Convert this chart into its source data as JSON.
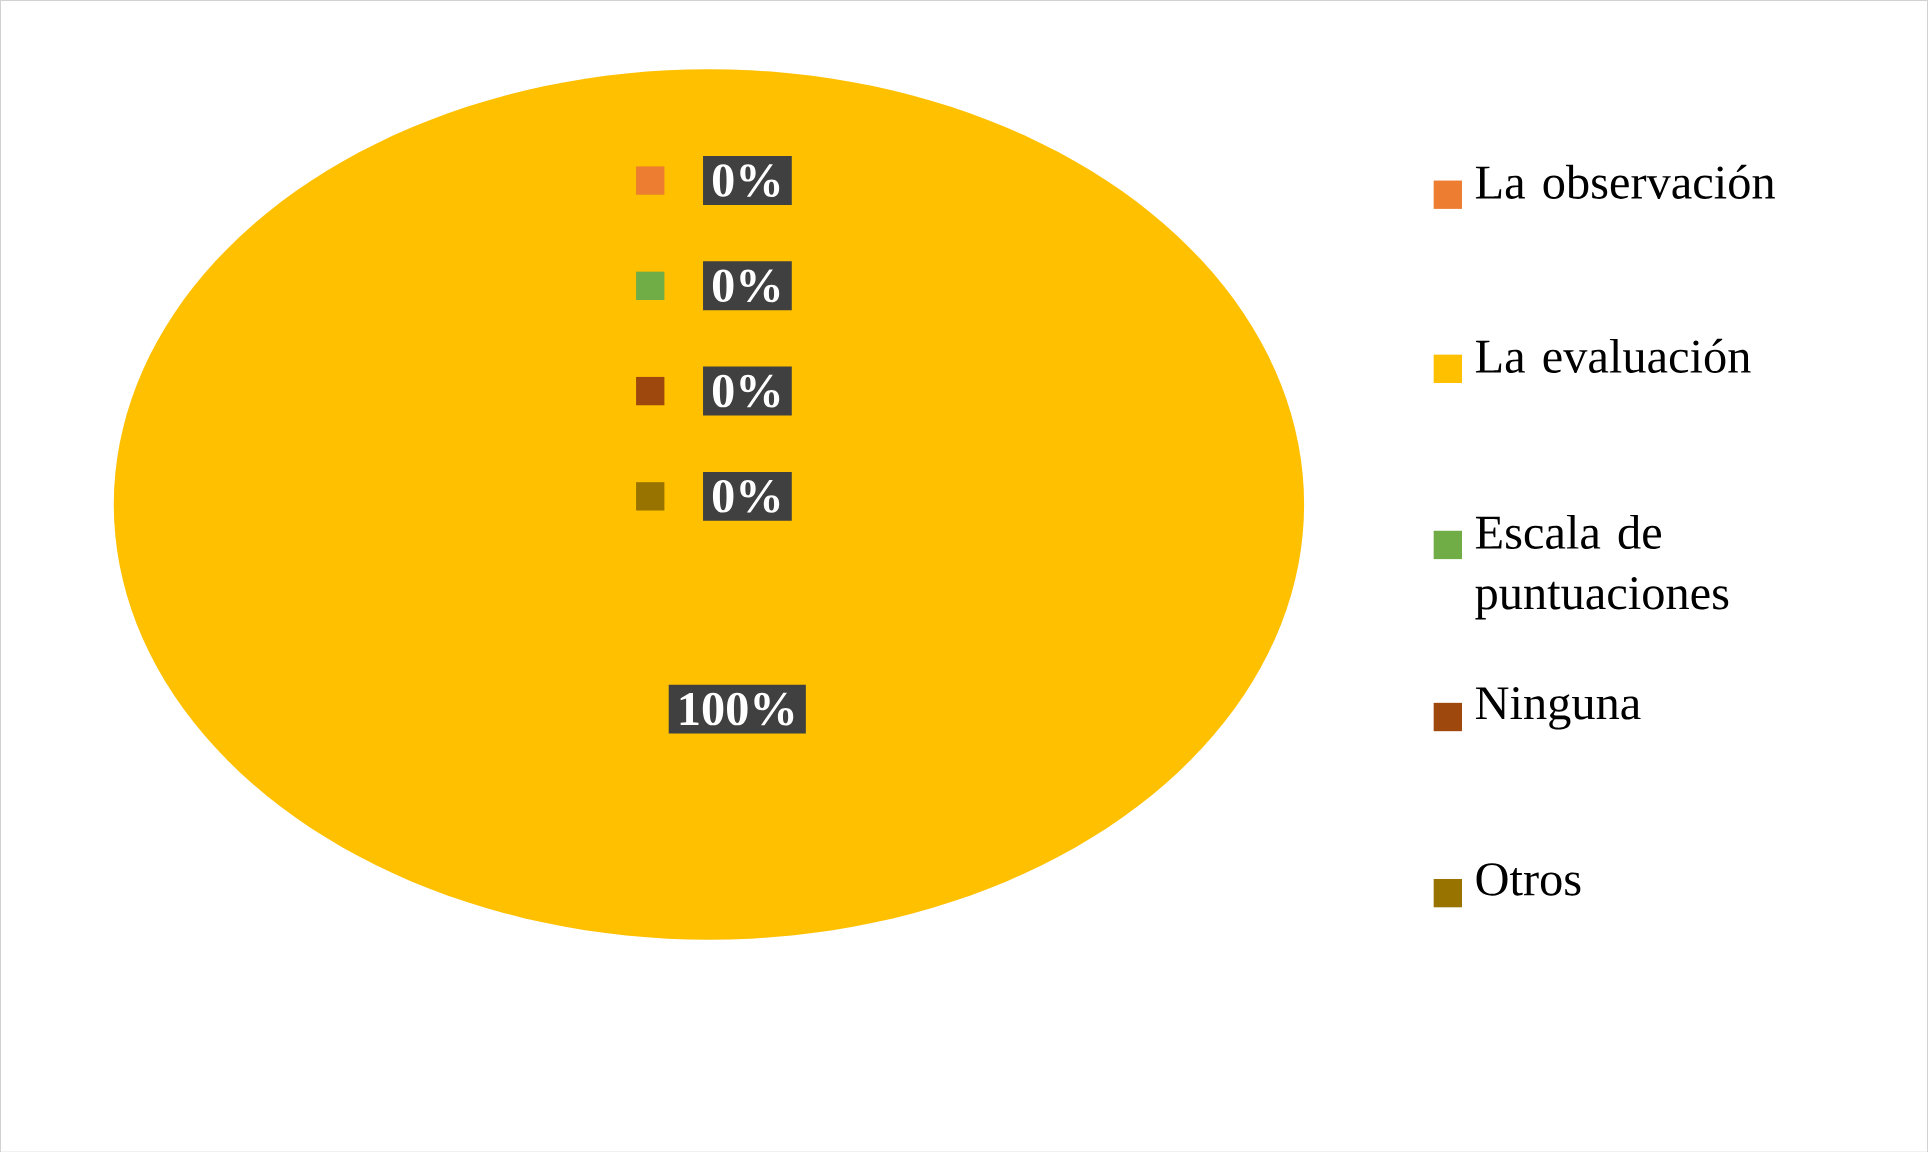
{
  "chart_data": {
    "type": "pie",
    "categories": [
      "La observación",
      "La evaluación",
      "Escala de puntuaciones",
      "Ninguna",
      "Otros"
    ],
    "values": [
      0,
      100,
      0,
      0,
      0
    ],
    "colors": [
      "#ed7d31",
      "#ffc000",
      "#70ad47",
      "#9e480e",
      "#997300"
    ],
    "value_labels": [
      "0%",
      "100%",
      "0%",
      "0%",
      "0%"
    ],
    "legend": "right"
  }
}
